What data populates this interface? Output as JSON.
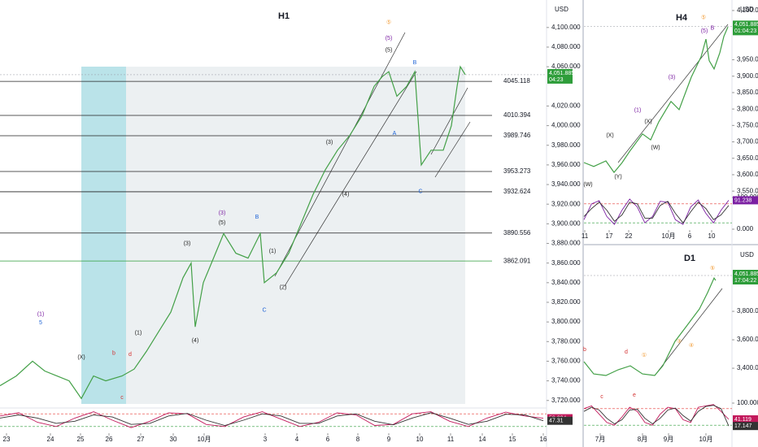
{
  "chart_data": [
    {
      "type": "line",
      "title": "H1",
      "currency": "USD",
      "color": "#43a047",
      "x": [
        0,
        2.0,
        4.0,
        5.5,
        7.0,
        8.5,
        10.0,
        11.5,
        13.0,
        15.0,
        16.5,
        18.0,
        19.5,
        21.0,
        22.5,
        23.5,
        24.0,
        25.0,
        26.5,
        27.5,
        29.0,
        30.5,
        32.0,
        32.5,
        34.0,
        35.5,
        37.0,
        38.5,
        40.0,
        41.5,
        43.0,
        44.5,
        46.0,
        47.0,
        47.8,
        48.8,
        50.0,
        51.0,
        51.8,
        53.0,
        54.5,
        55.5,
        56.2,
        56.6,
        57.2
      ],
      "values": [
        3735,
        3745,
        3760,
        3750,
        3745,
        3740,
        3722,
        3745,
        3740,
        3745,
        3752,
        3770,
        3790,
        3810,
        3845,
        3860,
        3795,
        3840,
        3870,
        3890,
        3870,
        3865,
        3890,
        3840,
        3850,
        3870,
        3900,
        3930,
        3955,
        3975,
        3990,
        4010,
        4040,
        4050,
        4055,
        4030,
        4040,
        4055,
        3960,
        3975,
        3975,
        4000,
        4040,
        4060,
        4052
      ],
      "xlim": [
        0,
        67.2
      ],
      "xticks": [
        {
          "value": 0.8,
          "label": "23"
        },
        {
          "value": 6.2,
          "label": "24"
        },
        {
          "value": 9.9,
          "label": "25"
        },
        {
          "value": 13.4,
          "label": "26"
        },
        {
          "value": 17.3,
          "label": "27"
        },
        {
          "value": 21.3,
          "label": "30"
        },
        {
          "value": 25.1,
          "label": "10月"
        },
        {
          "value": 32.6,
          "label": "3"
        },
        {
          "value": 36.5,
          "label": "4"
        },
        {
          "value": 40.3,
          "label": "6"
        },
        {
          "value": 44.0,
          "label": "8"
        },
        {
          "value": 47.8,
          "label": "9"
        },
        {
          "value": 51.6,
          "label": "10"
        },
        {
          "value": 55.4,
          "label": "11"
        },
        {
          "value": 59.3,
          "label": "14"
        },
        {
          "value": 63.0,
          "label": "15"
        },
        {
          "value": 66.8,
          "label": "16"
        }
      ],
      "ylim": [
        3714,
        4128
      ],
      "yticks": [
        {
          "value": 4100,
          "label": "4,100.000"
        },
        {
          "value": 4080,
          "label": "4,080.000"
        },
        {
          "value": 4060,
          "label": "4,060.000"
        },
        {
          "value": 4020,
          "label": "4,020.000"
        },
        {
          "value": 4000,
          "label": "4,000.000"
        },
        {
          "value": 3980,
          "label": "3,980.000"
        },
        {
          "value": 3960,
          "label": "3,960.000"
        },
        {
          "value": 3940,
          "label": "3,940.000"
        },
        {
          "value": 3920,
          "label": "3,920.000"
        },
        {
          "value": 3900,
          "label": "3,900.000"
        },
        {
          "value": 3880,
          "label": "3,880.000"
        },
        {
          "value": 3860,
          "label": "3,860.000"
        },
        {
          "value": 3840,
          "label": "3,840.000"
        },
        {
          "value": 3820,
          "label": "3,820.000"
        },
        {
          "value": 3800,
          "label": "3,800.000"
        },
        {
          "value": 3780,
          "label": "3,780.000"
        },
        {
          "value": 3760,
          "label": "3,760.000"
        },
        {
          "value": 3740,
          "label": "3,740.000"
        },
        {
          "value": 3720,
          "label": "3,720.000"
        }
      ],
      "levels": [
        4045.118,
        4010.394,
        3989.746,
        3953.273,
        3932.624,
        3890.556,
        3862.091
      ],
      "level_colors": [
        "#222",
        "#222",
        "#222",
        "#222",
        "#222",
        "#222",
        "#2e9d3a"
      ],
      "last_price": {
        "value": 4051.885,
        "label": "4,051.885"
      },
      "countdown": "04:23",
      "oscillator": {
        "ylim": [
          0,
          100
        ],
        "levels": [
          80,
          20
        ],
        "series": [
          {
            "color": "#c2185b",
            "readout": true,
            "values": [
              70,
              85,
              40,
              20,
              60,
              90,
              50,
              15,
              45,
              85,
              80,
              30,
              20,
              65,
              90,
              55,
              20,
              40,
              85,
              75,
              25,
              30,
              80,
              90,
              45,
              20,
              60,
              88,
              70,
              59.224
            ]
          },
          {
            "color": "#333333",
            "readout": true,
            "values": [
              60,
              75,
              60,
              35,
              45,
              75,
              65,
              30,
              35,
              70,
              82,
              50,
              25,
              50,
              80,
              70,
              35,
              35,
              70,
              80,
              45,
              28,
              60,
              85,
              60,
              30,
              45,
              78,
              75,
              47.31
            ]
          }
        ]
      },
      "annotations": [
        {
          "text": "(1)",
          "x": 5.0,
          "y": 3808,
          "color": "#7b1fa2"
        },
        {
          "text": "5",
          "x": 5.0,
          "y": 3799,
          "color": "#1e63d6"
        },
        {
          "text": "(X)",
          "x": 10.0,
          "y": 3764,
          "color": "#222"
        },
        {
          "text": "b",
          "x": 14.0,
          "y": 3768,
          "color": "#d32f2f"
        },
        {
          "text": "d",
          "x": 16.0,
          "y": 3767,
          "color": "#d32f2f"
        },
        {
          "text": "c",
          "x": 15.0,
          "y": 3723,
          "color": "#d32f2f"
        },
        {
          "text": "(1)",
          "x": 17.0,
          "y": 3789,
          "color": "#222"
        },
        {
          "text": "(3)",
          "x": 23.0,
          "y": 3880,
          "color": "#222"
        },
        {
          "text": "(4)",
          "x": 24.0,
          "y": 3781,
          "color": "#222"
        },
        {
          "text": "(3)",
          "x": 27.3,
          "y": 3911,
          "color": "#7b1fa2"
        },
        {
          "text": "(5)",
          "x": 27.3,
          "y": 3901,
          "color": "#222"
        },
        {
          "text": "B",
          "x": 31.6,
          "y": 3907,
          "color": "#1e63d6"
        },
        {
          "text": "(1)",
          "x": 33.5,
          "y": 3872,
          "color": "#222"
        },
        {
          "text": "(2)",
          "x": 34.8,
          "y": 3835,
          "color": "#222"
        },
        {
          "text": "C",
          "x": 32.5,
          "y": 3812,
          "color": "#1e63d6"
        },
        {
          "text": "(3)",
          "x": 40.5,
          "y": 3983,
          "color": "#222"
        },
        {
          "text": "(4)",
          "x": 42.5,
          "y": 3930,
          "color": "#222"
        },
        {
          "text": "⑤",
          "x": 47.8,
          "y": 4105,
          "color": "#f29d38"
        },
        {
          "text": "(5)",
          "x": 47.8,
          "y": 4089,
          "color": "#7b1fa2"
        },
        {
          "text": "(5)",
          "x": 47.8,
          "y": 4077,
          "color": "#222"
        },
        {
          "text": "B",
          "x": 51.0,
          "y": 4064,
          "color": "#1e63d6"
        },
        {
          "text": "A",
          "x": 48.5,
          "y": 3992,
          "color": "#1e63d6"
        },
        {
          "text": "C",
          "x": 51.7,
          "y": 3933,
          "color": "#1e63d6"
        }
      ]
    },
    {
      "type": "line",
      "title": "H4",
      "currency": "USD",
      "color": "#43a047",
      "x": [
        0,
        1.2,
        2.7,
        3.7,
        4.7,
        5.7,
        7.2,
        8.2,
        9.2,
        10.7,
        11.7,
        13.2,
        14.4,
        15.0,
        15.4,
        16.0,
        16.7,
        17.2,
        17.7
      ],
      "values": [
        3637,
        3625,
        3642,
        3607,
        3637,
        3674,
        3724,
        3706,
        3761,
        3823,
        3798,
        3897,
        3959,
        4013,
        3947,
        3922,
        3971,
        4021,
        4050
      ],
      "xlim": [
        0,
        18.2
      ],
      "xticks": [
        {
          "value": 0.1,
          "label": "11"
        },
        {
          "value": 3.1,
          "label": "17"
        },
        {
          "value": 5.5,
          "label": "22"
        },
        {
          "value": 10.4,
          "label": "10月"
        },
        {
          "value": 13.0,
          "label": "6"
        },
        {
          "value": 15.7,
          "label": "10"
        }
      ],
      "ylim": [
        3538,
        4132
      ],
      "yticks": [
        {
          "value": 4100,
          "label": "4,100.000"
        },
        {
          "value": 3950,
          "label": "3,950.000"
        },
        {
          "value": 3900,
          "label": "3,900.000"
        },
        {
          "value": 3850,
          "label": "3,850.000"
        },
        {
          "value": 3800,
          "label": "3,800.000"
        },
        {
          "value": 3750,
          "label": "3,750.000"
        },
        {
          "value": 3700,
          "label": "3,700.000"
        },
        {
          "value": 3650,
          "label": "3,650.000"
        },
        {
          "value": 3600,
          "label": "3,600.000"
        },
        {
          "value": 3550,
          "label": "3,550.000"
        }
      ],
      "last_price": {
        "value": 4051.885,
        "label": "4,051.885"
      },
      "countdown": "01:04:23",
      "oscillator": {
        "ylim": [
          0,
          100
        ],
        "levels": [
          80,
          20
        ],
        "yticks": [
          {
            "value": 100,
            "label": "100.000"
          },
          {
            "value": 0,
            "label": "0.000"
          }
        ],
        "series": [
          {
            "color": "#7b1fa2",
            "readout": true,
            "values": [
              30,
              80,
              90,
              40,
              15,
              60,
              95,
              70,
              20,
              40,
              88,
              85,
              30,
              15,
              70,
              92,
              50,
              20,
              60,
              91.238
            ]
          },
          {
            "color": "#333333",
            "readout": false,
            "values": [
              40,
              65,
              85,
              60,
              25,
              45,
              85,
              80,
              35,
              35,
              75,
              88,
              50,
              20,
              55,
              85,
              65,
              30,
              45,
              75
            ]
          }
        ]
      },
      "annotations": [
        {
          "text": "⑤",
          "x": 14.7,
          "y": 4078,
          "color": "#f29d38"
        },
        {
          "text": "(5)",
          "x": 14.8,
          "y": 4038,
          "color": "#7b1fa2"
        },
        {
          "text": "B",
          "x": 15.8,
          "y": 4046,
          "color": "#7b1fa2"
        },
        {
          "text": "(3)",
          "x": 10.8,
          "y": 3897,
          "color": "#7b1fa2"
        },
        {
          "text": "(1)",
          "x": 6.6,
          "y": 3796,
          "color": "#7b1fa2"
        },
        {
          "text": "(X)",
          "x": 7.9,
          "y": 3761,
          "color": "#222"
        },
        {
          "text": "(X)",
          "x": 3.2,
          "y": 3719,
          "color": "#222"
        },
        {
          "text": "(W)",
          "x": 8.8,
          "y": 3682,
          "color": "#222"
        },
        {
          "text": "(Y)",
          "x": 4.2,
          "y": 3593,
          "color": "#222"
        },
        {
          "text": "(W)",
          "x": 0.5,
          "y": 3570,
          "color": "#222"
        }
      ]
    },
    {
      "type": "line",
      "title": "D1",
      "currency": "USD",
      "color": "#43a047",
      "x": [
        0,
        1.2,
        2.7,
        4.2,
        5.7,
        7.2,
        8.7,
        9.7,
        11.2,
        12.7,
        14.2,
        15.2,
        16.0,
        16.2
      ],
      "values": [
        3446,
        3360,
        3349,
        3389,
        3417,
        3360,
        3349,
        3417,
        3589,
        3703,
        3817,
        3931,
        4034,
        4017
      ],
      "xlim": [
        0,
        18.2
      ],
      "xticks": [
        {
          "value": 2.0,
          "label": "7月"
        },
        {
          "value": 7.2,
          "label": "8月"
        },
        {
          "value": 10.4,
          "label": "9月"
        },
        {
          "value": 15.0,
          "label": "10月"
        }
      ],
      "ylim": [
        3189,
        4149
      ],
      "yticks": [
        {
          "value": 3800,
          "label": "3,800.000"
        },
        {
          "value": 3600,
          "label": "3,600.000"
        },
        {
          "value": 3400,
          "label": "3,400.000"
        }
      ],
      "last_price": {
        "value": 4051.885,
        "label": "4,051.885"
      },
      "countdown": "17:04:22",
      "oscillator": {
        "ylim": [
          0,
          100
        ],
        "levels": [
          80,
          20
        ],
        "yticks": [
          {
            "value": 100,
            "label": "100.000"
          }
        ],
        "series": [
          {
            "color": "#c2185b",
            "readout": true,
            "values": [
              80,
              90,
              60,
              30,
              20,
              50,
              85,
              70,
              30,
              20,
              60,
              85,
              80,
              40,
              30,
              85,
              90,
              95,
              70,
              41.119
            ]
          },
          {
            "color": "#333333",
            "readout": true,
            "values": [
              70,
              85,
              75,
              45,
              25,
              40,
              75,
              78,
              45,
              25,
              45,
              75,
              82,
              55,
              35,
              70,
              88,
              92,
              80,
              17.147
            ]
          }
        ]
      },
      "annotations": [
        {
          "text": "⑤",
          "x": 15.8,
          "y": 4103,
          "color": "#f29d38"
        },
        {
          "text": "b",
          "x": 0.1,
          "y": 3531,
          "color": "#d32f2f"
        },
        {
          "text": "d",
          "x": 5.2,
          "y": 3514,
          "color": "#d32f2f"
        },
        {
          "text": "c",
          "x": 2.2,
          "y": 3200,
          "color": "#d32f2f"
        },
        {
          "text": "e",
          "x": 6.2,
          "y": 3210,
          "color": "#d32f2f"
        },
        {
          "text": "①",
          "x": 7.4,
          "y": 3491,
          "color": "#f29d38"
        },
        {
          "text": "③",
          "x": 11.7,
          "y": 3589,
          "color": "#f29d38"
        },
        {
          "text": "④",
          "x": 13.2,
          "y": 3560,
          "color": "#f29d38"
        }
      ]
    }
  ]
}
